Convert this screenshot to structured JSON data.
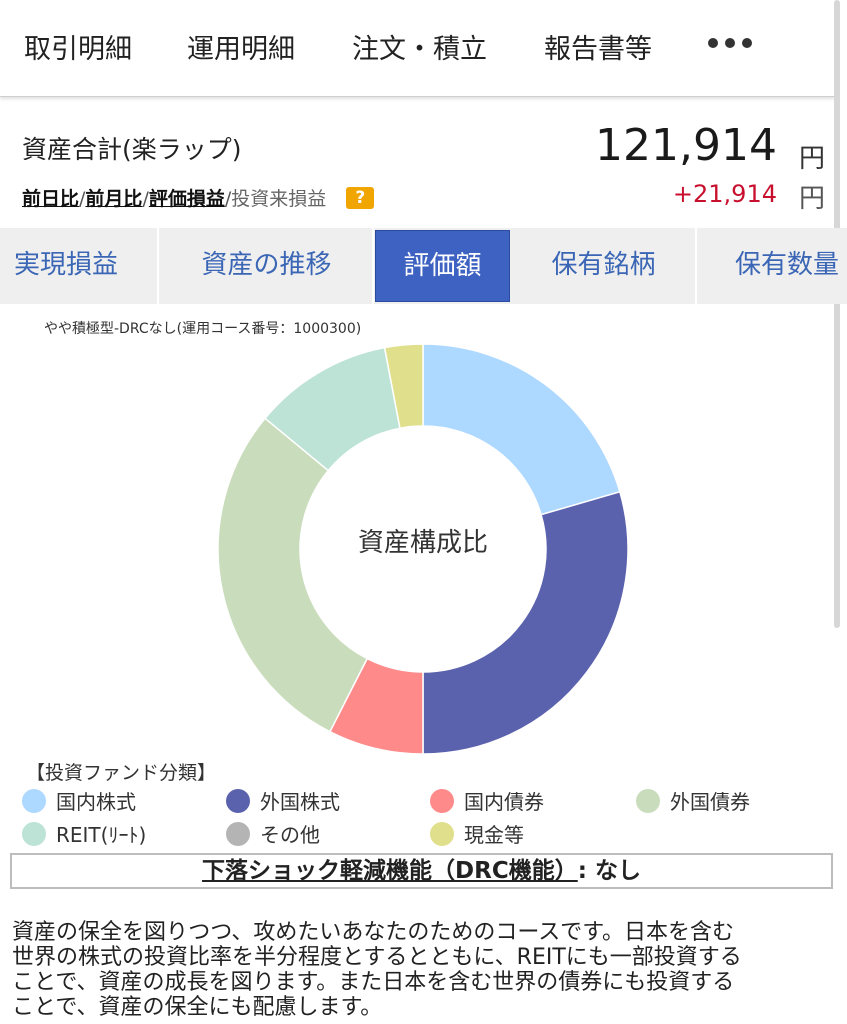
{
  "nav": {
    "items": [
      "取引明細",
      "運用明細",
      "注文・積立",
      "報告書等"
    ],
    "more_icon": "ellipsis-icon"
  },
  "summary": {
    "title": "資産合計(楽ラップ)",
    "amount": "121,914",
    "amount_unit": "円",
    "metrics": {
      "day": "前日比",
      "month": "前月比",
      "valuation": "評価損益",
      "since_start": "投資来損益",
      "sep": "/"
    },
    "help_icon": "question-icon",
    "help_label": "?",
    "gain": "+21,914",
    "gain_unit": "円",
    "gain_color": "#c8102e"
  },
  "tabs": [
    {
      "label": "実現損益",
      "active": false
    },
    {
      "label": "資産の推移",
      "active": false
    },
    {
      "label": "評価額",
      "active": true
    },
    {
      "label": "保有銘柄",
      "active": false
    },
    {
      "label": "保有数量",
      "active": false
    }
  ],
  "course_label": "やや積極型-DRCなし(運用コース番号：1000300)",
  "chart_data": {
    "type": "pie",
    "center_label": "資産構成比",
    "categories": [
      "国内株式",
      "外国株式",
      "国内債券",
      "外国債券",
      "REIT(ﾘｰﾄ)",
      "その他",
      "現金等"
    ],
    "values": [
      20.5,
      29.5,
      7.5,
      28.5,
      11.0,
      0,
      3.0
    ],
    "colors": [
      "#add8ff",
      "#5b62ad",
      "#ff8a8a",
      "#c9dcbc",
      "#bde3d6",
      "#b4b4b4",
      "#e0df8c"
    ]
  },
  "legend": {
    "title": "【投資ファンド分類】"
  },
  "drc": {
    "label": "下落ショック軽減機能（DRC機能）",
    "suffix": ": なし"
  },
  "description": [
    "資産の保全を図りつつ、攻めたいあなたのためのコースです。日本を含む",
    "世界の株式の投資比率を半分程度とするとともに、REITにも一部投資する",
    "ことで、資産の成長を図ります。また日本を含む世界の債券にも投資する",
    "ことで、資産の保全にも配慮します。"
  ]
}
